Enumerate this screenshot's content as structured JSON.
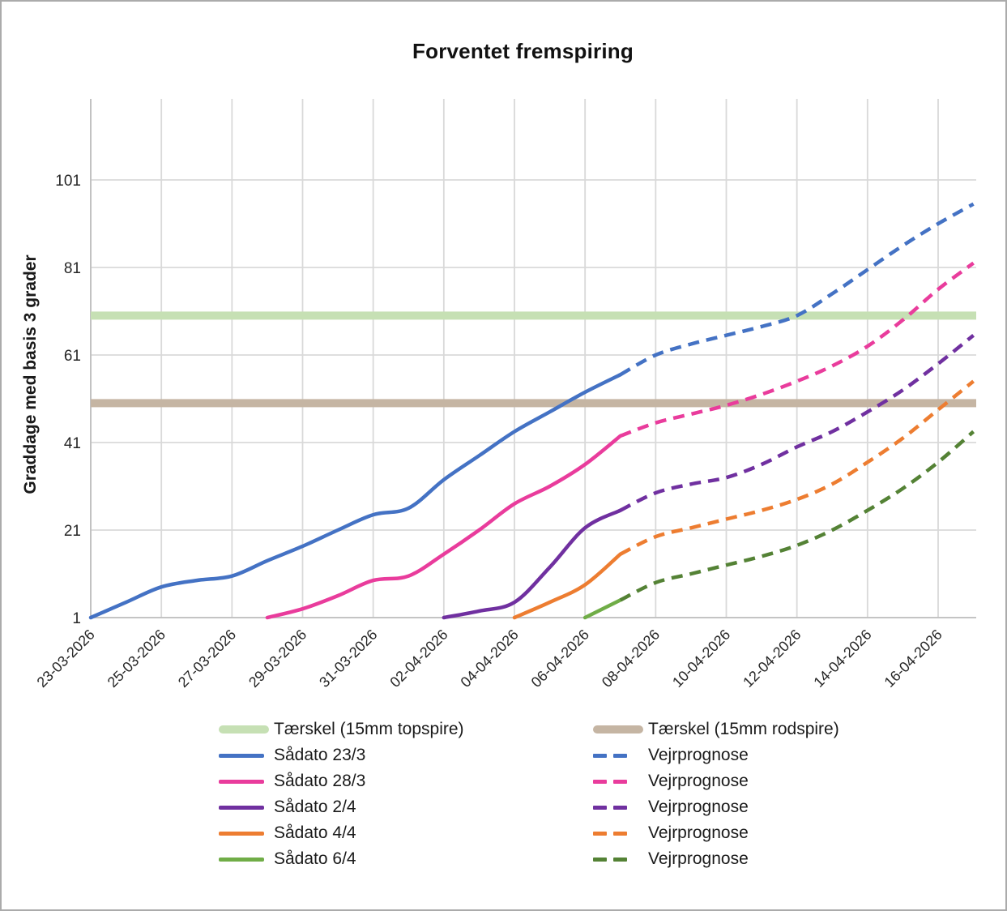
{
  "chart_data": {
    "type": "line",
    "title": "Forventet fremspiring",
    "ylabel": "Graddage med basis 3 grader",
    "x_unit": "days since 23-03-2026",
    "dates_range": [
      "23-03-2026",
      "17-04-2026"
    ],
    "days_total": 25,
    "ylim": [
      1,
      121
    ],
    "y_ticks": [
      1,
      21,
      41,
      61,
      81,
      101
    ],
    "x_ticks": {
      "labels": [
        "23-03-2026",
        "25-03-2026",
        "27-03-2026",
        "29-03-2026",
        "31-03-2026",
        "02-04-2026",
        "04-04-2026",
        "06-04-2026",
        "08-04-2026",
        "10-04-2026",
        "12-04-2026",
        "14-04-2026",
        "16-04-2026"
      ],
      "days": [
        0,
        2,
        4,
        6,
        8,
        10,
        12,
        14,
        16,
        18,
        20,
        22,
        24
      ]
    },
    "grid": true,
    "legend_position": "bottom",
    "forecast_label": "Vejrprognose",
    "forecast_start_day": 15,
    "thresholds": [
      {
        "label": "Tærskel (15mm topspire)",
        "value": 70,
        "color": "#c6e0b4"
      },
      {
        "label": "Tærskel (15mm rodspire)",
        "value": 50,
        "color": "#c5b5a3"
      }
    ],
    "series": [
      {
        "name": "Sådato 23/3",
        "color": "#4472c4",
        "forecast_color": "#4472c4",
        "actual": {
          "start_day": 0,
          "values": [
            1,
            4.5,
            8,
            9.5,
            10.5,
            14,
            17.3,
            21,
            24.5,
            26,
            32.5,
            38,
            43.5,
            48,
            52.5,
            56.5
          ]
        },
        "forecast": {
          "start_day": 15,
          "values": [
            56.5,
            61,
            63.5,
            65.5,
            67.5,
            70,
            75,
            80.5,
            86,
            91,
            95.5
          ]
        }
      },
      {
        "name": "Sådato 28/3",
        "color": "#e93c9c",
        "forecast_color": "#e93c9c",
        "actual": {
          "start_day": 5,
          "values": [
            1,
            3,
            6,
            9.5,
            10.5,
            15.5,
            21,
            27,
            31,
            36,
            42.5
          ]
        },
        "forecast": {
          "start_day": 15,
          "values": [
            42.5,
            45.5,
            47.5,
            49.5,
            52,
            55,
            58.5,
            63,
            69,
            76,
            82
          ]
        }
      },
      {
        "name": "Sådato 2/4",
        "color": "#7030a0",
        "forecast_color": "#7030a0",
        "actual": {
          "start_day": 10,
          "values": [
            1,
            2.5,
            4.5,
            12.5,
            21.5,
            25.5
          ]
        },
        "forecast": {
          "start_day": 15,
          "values": [
            25.5,
            29.5,
            31.5,
            33,
            36,
            40,
            43.5,
            48,
            53,
            59,
            65.5
          ]
        }
      },
      {
        "name": "Sådato 4/4",
        "color": "#ed7d31",
        "forecast_color": "#ed7d31",
        "actual": {
          "start_day": 12,
          "values": [
            1,
            4.5,
            8.5,
            15.5
          ]
        },
        "forecast": {
          "start_day": 15,
          "values": [
            15.5,
            19.5,
            21.5,
            23.5,
            25.5,
            28,
            31.5,
            36.5,
            42,
            48.5,
            55
          ]
        }
      },
      {
        "name": "Sådato 6/4",
        "color": "#70ad47",
        "forecast_color": "#548235",
        "actual": {
          "start_day": 14,
          "values": [
            1,
            5
          ]
        },
        "forecast": {
          "start_day": 15,
          "values": [
            5,
            9,
            11,
            13,
            15,
            17.5,
            21,
            25.5,
            30.5,
            36.5,
            43.5
          ]
        }
      }
    ],
    "style_colors": {
      "gridline": "#d9d9d9",
      "axis_line": "#bfbfbf",
      "tick_text": "#262626"
    }
  }
}
